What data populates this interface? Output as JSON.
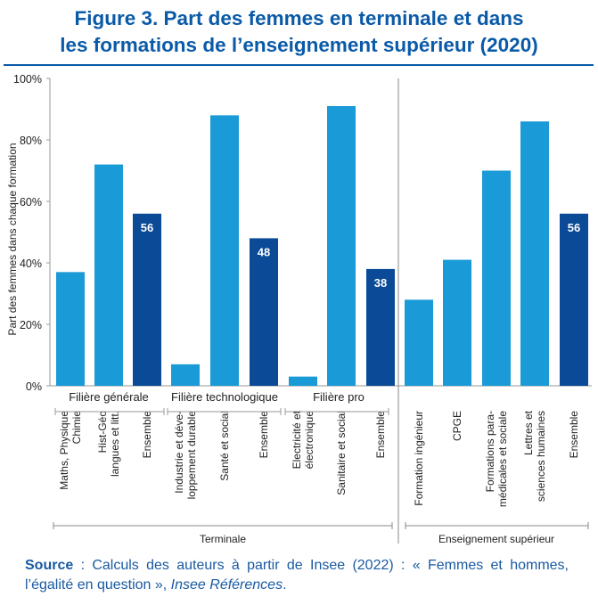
{
  "title": {
    "line1": "Figure 3. Part des femmes en terminale et dans",
    "line2": "les formations de l’enseignement supérieur (2020)"
  },
  "source": {
    "label": "Source",
    "text": " : Calculs des auteurs à partir de Insee (2022) : « Femmes et hommes, l’égalité en question », ",
    "italic": "Insee Références",
    "end": "."
  },
  "colors": {
    "light": "#1a9ad6",
    "dark": "#0a4a96",
    "axis": "#9a9a9a"
  },
  "chart_data": {
    "type": "bar",
    "ylabel": "Part des femmes dans chaque formation",
    "yticks": [
      "0%",
      "20%",
      "40%",
      "60%",
      "80%",
      "100%"
    ],
    "ylim": [
      0,
      100
    ],
    "groups": [
      {
        "name": "Filière générale",
        "section": "Terminale"
      },
      {
        "name": "Filière technologique",
        "section": "Terminale"
      },
      {
        "name": "Filière pro",
        "section": "Terminale"
      },
      {
        "name": "",
        "section": "Enseignement supérieur"
      }
    ],
    "sections": [
      "Terminale",
      "Enseignement supérieur"
    ],
    "bars": [
      {
        "label": [
          "Maths, Physique",
          "Chimie"
        ],
        "value": 37,
        "kind": "light",
        "group": 0
      },
      {
        "label": [
          "Hist-Géo",
          "langues et litt."
        ],
        "value": 72,
        "kind": "light",
        "group": 0
      },
      {
        "label": [
          "Ensemble"
        ],
        "value": 56,
        "kind": "dark",
        "group": 0,
        "data_label": "56"
      },
      {
        "label": [
          "Industrie et déve-",
          "loppement durable"
        ],
        "value": 7,
        "kind": "light",
        "group": 1
      },
      {
        "label": [
          "Santé et social"
        ],
        "value": 88,
        "kind": "light",
        "group": 1
      },
      {
        "label": [
          "Ensemble"
        ],
        "value": 48,
        "kind": "dark",
        "group": 1,
        "data_label": "48"
      },
      {
        "label": [
          "Electricité et",
          "électronique"
        ],
        "value": 3,
        "kind": "light",
        "group": 2
      },
      {
        "label": [
          "Sanitaire et social"
        ],
        "value": 91,
        "kind": "light",
        "group": 2
      },
      {
        "label": [
          "Ensemble"
        ],
        "value": 38,
        "kind": "dark",
        "group": 2,
        "data_label": "38"
      },
      {
        "label": [
          "Formation ingénieur"
        ],
        "value": 28,
        "kind": "light",
        "group": 3
      },
      {
        "label": [
          "CPGE"
        ],
        "value": 41,
        "kind": "light",
        "group": 3
      },
      {
        "label": [
          "Formations para-",
          "médicales et sociale"
        ],
        "value": 70,
        "kind": "light",
        "group": 3
      },
      {
        "label": [
          "Lettres et",
          "sciences humaines"
        ],
        "value": 86,
        "kind": "light",
        "group": 3
      },
      {
        "label": [
          "Ensemble"
        ],
        "value": 56,
        "kind": "dark",
        "group": 3,
        "data_label": "56"
      }
    ]
  }
}
